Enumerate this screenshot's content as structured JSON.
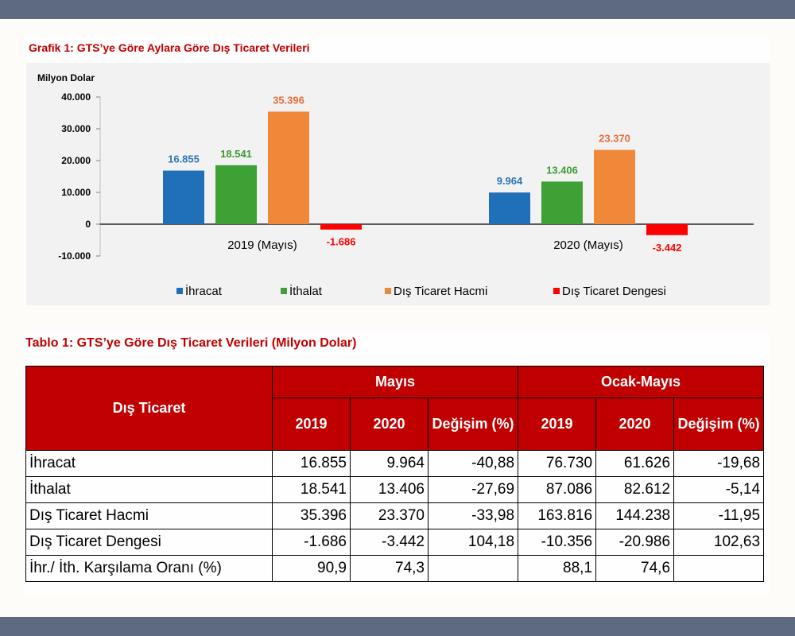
{
  "chart_data": {
    "type": "bar",
    "title": "Grafik 1: GTS’ye Göre Aylara Göre Dış Ticaret Verileri",
    "ylabel": "Milyon Dolar",
    "ylim": [
      -10000,
      40000
    ],
    "yticks": [
      -10000,
      0,
      10000,
      20000,
      30000,
      40000
    ],
    "ytick_labels": [
      "-10.000",
      "0",
      "10.000",
      "20.000",
      "30.000",
      "40.000"
    ],
    "categories": [
      "2019 (Mayıs)",
      "2020 (Mayıs)"
    ],
    "series": [
      {
        "name": "İhracat",
        "color": "#1f6fb9",
        "values": [
          16855,
          9964
        ],
        "labels": [
          "16.855",
          "9.964"
        ],
        "label_color": "#2e75b6"
      },
      {
        "name": "İthalat",
        "color": "#3ea135",
        "values": [
          18541,
          13406
        ],
        "labels": [
          "18.541",
          "13.406"
        ],
        "label_color": "#3a9a32"
      },
      {
        "name": "Dış Ticaret Hacmi",
        "color": "#f0883a",
        "values": [
          35396,
          23370
        ],
        "labels": [
          "35.396",
          "23.370"
        ],
        "label_color": "#e46c3a"
      },
      {
        "name": "Dış Ticaret Dengesi",
        "color": "#ff0000",
        "values": [
          -1686,
          -3442
        ],
        "labels": [
          "-1.686",
          "-3.442"
        ],
        "label_color": "#ff0000"
      }
    ],
    "legend": "bottom",
    "grid": false
  },
  "table": {
    "title": "Tablo 1: GTS’ye Göre Dış Ticaret Verileri (Milyon Dolar)",
    "corner": "Dış Ticaret",
    "group_headers": [
      "Mayıs",
      "Ocak-Mayıs"
    ],
    "sub_headers": [
      "2019",
      "2020",
      "Değişim (%)",
      "2019",
      "2020",
      "Değişim (%)"
    ],
    "rows": [
      {
        "label": "İhracat",
        "values": [
          "16.855",
          "9.964",
          "-40,88",
          "76.730",
          "61.626",
          "-19,68"
        ]
      },
      {
        "label": "İthalat",
        "values": [
          "18.541",
          "13.406",
          "-27,69",
          "87.086",
          "82.612",
          "-5,14"
        ]
      },
      {
        "label": "Dış Ticaret Hacmi",
        "values": [
          "35.396",
          "23.370",
          "-33,98",
          "163.816",
          "144.238",
          "-11,95"
        ]
      },
      {
        "label": "Dış Ticaret Dengesi",
        "values": [
          "-1.686",
          "-3.442",
          "104,18",
          "-10.356",
          "-20.986",
          "102,63"
        ]
      },
      {
        "label": "İhr./ İth. Karşılama Oranı (%)",
        "values": [
          "90,9",
          "74,3",
          "",
          "88,1",
          "74,6",
          ""
        ]
      }
    ]
  }
}
